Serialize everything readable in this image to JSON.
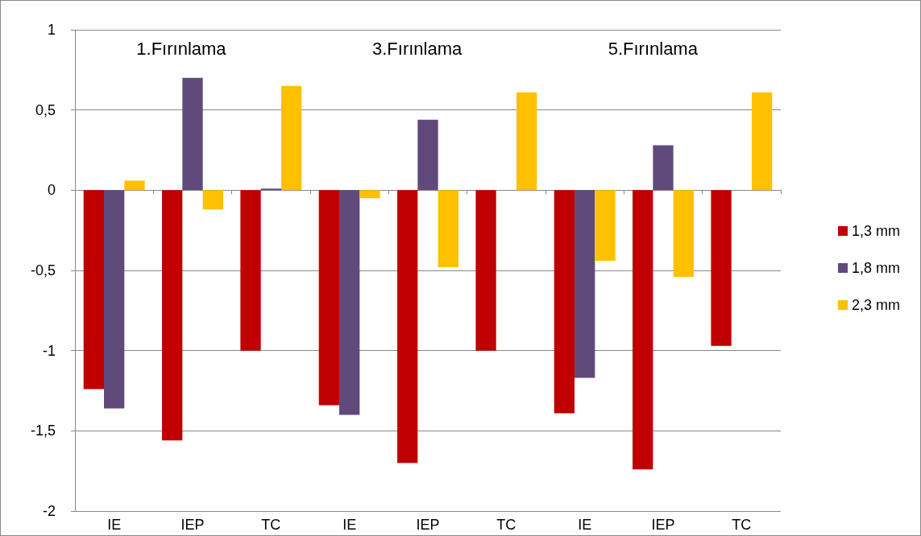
{
  "chart_data": {
    "type": "bar",
    "categories": [
      "IE",
      "IEP",
      "TC",
      "IE",
      "IEP",
      "TC",
      "IE",
      "IEP",
      "TC"
    ],
    "series": [
      {
        "name": "1,3 mm",
        "color": "#c00000",
        "values": [
          -1.24,
          -1.56,
          -1.0,
          -1.34,
          -1.7,
          -1.0,
          -1.39,
          -1.74,
          -0.97
        ]
      },
      {
        "name": "1,8 mm",
        "color": "#604a7b",
        "values": [
          -1.36,
          0.7,
          0.01,
          -1.4,
          0.44,
          0,
          -1.17,
          0.28,
          0
        ]
      },
      {
        "name": "2,3 mm",
        "color": "#ffc000",
        "values": [
          0.06,
          -0.12,
          0.65,
          -0.05,
          -0.48,
          0.61,
          -0.44,
          -0.54,
          0.61
        ]
      }
    ],
    "annotations": [
      "1.Fırınlama",
      "3.Fırınlama",
      "5.Fırınlama"
    ],
    "ylim": [
      -2,
      1
    ],
    "yticks": [
      {
        "value": -2,
        "label": "-2"
      },
      {
        "value": -1.5,
        "label": "-1,5"
      },
      {
        "value": -1,
        "label": "-1"
      },
      {
        "value": -0.5,
        "label": "-0,5"
      },
      {
        "value": 0,
        "label": "0"
      },
      {
        "value": 0.5,
        "label": "0,5"
      },
      {
        "value": 1,
        "label": "1"
      }
    ],
    "grid": "y",
    "legend": "right"
  }
}
